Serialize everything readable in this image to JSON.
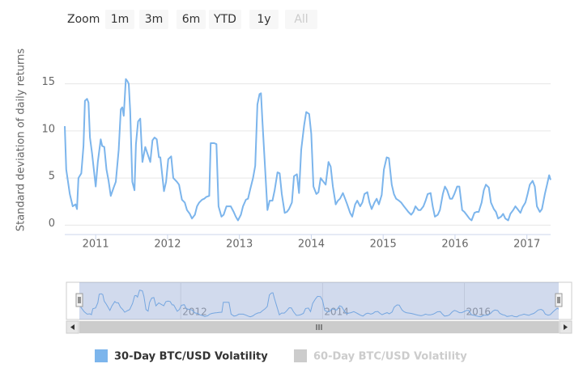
{
  "chart_data": {
    "type": "line",
    "range_selector": {
      "label": "Zoom",
      "buttons": [
        "1m",
        "3m",
        "6m",
        "YTD",
        "1y",
        "All"
      ],
      "disabled": [
        "All"
      ]
    },
    "y_label": "Standard deviation of daily returns",
    "xlim": [
      2010.57,
      2017.33
    ],
    "xticks": [
      2011,
      2012,
      2013,
      2014,
      2015,
      2016,
      2017
    ],
    "ylim": [
      -1,
      19
    ],
    "yticks": [
      0,
      5,
      10,
      15
    ],
    "grid": true,
    "navigator_xticks": [
      2012,
      2014,
      2016
    ],
    "x": [
      2010.57,
      2010.59,
      2010.64,
      2010.68,
      2010.72,
      2010.74,
      2010.76,
      2010.8,
      2010.83,
      2010.85,
      2010.88,
      2010.9,
      2010.92,
      2010.95,
      2011.0,
      2011.03,
      2011.07,
      2011.09,
      2011.12,
      2011.15,
      2011.18,
      2011.21,
      2011.25,
      2011.28,
      2011.32,
      2011.35,
      2011.37,
      2011.39,
      2011.42,
      2011.44,
      2011.46,
      2011.48,
      2011.51,
      2011.54,
      2011.56,
      2011.59,
      2011.62,
      2011.65,
      2011.69,
      2011.72,
      2011.76,
      2011.79,
      2011.82,
      2011.85,
      2011.88,
      2011.9,
      2011.95,
      2011.98,
      2012.01,
      2012.05,
      2012.08,
      2012.13,
      2012.16,
      2012.2,
      2012.24,
      2012.27,
      2012.31,
      2012.34,
      2012.38,
      2012.41,
      2012.44,
      2012.48,
      2012.51,
      2012.54,
      2012.58,
      2012.6,
      2012.65,
      2012.68,
      2012.71,
      2012.75,
      2012.78,
      2012.82,
      2012.88,
      2012.92,
      2012.95,
      2012.98,
      2013.02,
      2013.05,
      2013.09,
      2013.12,
      2013.15,
      2013.19,
      2013.22,
      2013.25,
      2013.28,
      2013.3,
      2013.32,
      2013.36,
      2013.39,
      2013.42,
      2013.46,
      2013.49,
      2013.53,
      2013.56,
      2013.59,
      2013.63,
      2013.66,
      2013.69,
      2013.73,
      2013.76,
      2013.8,
      2013.83,
      2013.86,
      2013.9,
      2013.93,
      2013.97,
      2014.0,
      2014.03,
      2014.07,
      2014.1,
      2014.13,
      2014.17,
      2014.2,
      2014.24,
      2014.27,
      2014.3,
      2014.34,
      2014.37,
      2014.4,
      2014.44,
      2014.47,
      2014.5,
      2014.54,
      2014.57,
      2014.61,
      2014.64,
      2014.68,
      2014.71,
      2014.74,
      2014.78,
      2014.81,
      2014.84,
      2014.88,
      2014.91,
      2014.94,
      2014.98,
      2015.01,
      2015.05,
      2015.08,
      2015.12,
      2015.15,
      2015.18,
      2015.22,
      2015.25,
      2015.29,
      2015.32,
      2015.35,
      2015.39,
      2015.42,
      2015.45,
      2015.49,
      2015.52,
      2015.56,
      2015.59,
      2015.62,
      2015.66,
      2015.69,
      2015.72,
      2015.76,
      2015.79,
      2015.83,
      2015.86,
      2015.89,
      2015.93,
      2015.96,
      2015.99,
      2016.03,
      2016.06,
      2016.1,
      2016.13,
      2016.16,
      2016.2,
      2016.23,
      2016.27,
      2016.3,
      2016.33,
      2016.37,
      2016.4,
      2016.43,
      2016.47,
      2016.5,
      2016.54,
      2016.57,
      2016.6,
      2016.64,
      2016.67,
      2016.7,
      2016.74,
      2016.77,
      2016.81,
      2016.84,
      2016.87,
      2016.91,
      2016.94,
      2016.98,
      2017.01,
      2017.04,
      2017.08,
      2017.11,
      2017.14,
      2017.18,
      2017.21,
      2017.25,
      2017.28,
      2017.31,
      2017.33
    ],
    "series": [
      {
        "name": "30-Day BTC/USD Volatility",
        "color": "#7cb5ec",
        "visible": true,
        "values": [
          10.5,
          5.9,
          3.3,
          2.0,
          2.2,
          1.7,
          5.0,
          5.5,
          8.4,
          13.2,
          13.4,
          13.0,
          9.3,
          7.6,
          4.1,
          6.7,
          9.1,
          8.4,
          8.3,
          5.9,
          4.7,
          3.1,
          4.0,
          4.6,
          8.0,
          12.3,
          12.5,
          11.6,
          15.5,
          15.3,
          15.0,
          12.1,
          4.6,
          3.7,
          8.6,
          11.0,
          11.3,
          6.7,
          8.3,
          7.6,
          6.7,
          9.0,
          9.3,
          9.1,
          7.2,
          7.2,
          3.6,
          4.6,
          7.0,
          7.3,
          5.0,
          4.6,
          4.3,
          2.7,
          2.4,
          1.6,
          1.2,
          0.7,
          1.1,
          2.0,
          2.4,
          2.7,
          2.8,
          3.0,
          3.1,
          8.7,
          8.7,
          8.6,
          2.0,
          0.9,
          1.1,
          2.0,
          2.0,
          1.4,
          0.9,
          0.5,
          1.1,
          2.0,
          2.7,
          2.8,
          3.8,
          5.0,
          6.3,
          12.8,
          13.9,
          14.0,
          11.0,
          5.7,
          1.6,
          2.6,
          2.6,
          3.7,
          5.6,
          5.5,
          3.3,
          1.3,
          1.4,
          1.7,
          2.4,
          5.2,
          5.4,
          3.4,
          8.0,
          10.6,
          12.0,
          11.8,
          9.7,
          4.1,
          3.3,
          3.5,
          5.0,
          4.6,
          4.3,
          6.7,
          6.2,
          4.1,
          2.2,
          2.6,
          2.8,
          3.4,
          2.8,
          2.2,
          1.3,
          0.9,
          2.2,
          2.6,
          2.0,
          2.4,
          3.3,
          3.5,
          2.4,
          1.7,
          2.4,
          2.8,
          2.2,
          3.2,
          5.9,
          7.2,
          7.1,
          4.3,
          3.3,
          2.8,
          2.6,
          2.4,
          2.0,
          1.7,
          1.4,
          1.1,
          1.4,
          2.0,
          1.6,
          1.6,
          2.0,
          2.6,
          3.3,
          3.4,
          2.0,
          0.9,
          1.1,
          1.6,
          3.3,
          4.1,
          3.7,
          2.8,
          2.8,
          3.3,
          4.1,
          4.1,
          1.6,
          1.4,
          1.1,
          0.7,
          0.5,
          1.3,
          1.4,
          1.4,
          2.4,
          3.7,
          4.3,
          4.0,
          2.4,
          1.7,
          1.4,
          0.7,
          0.9,
          1.2,
          0.7,
          0.5,
          1.2,
          1.6,
          2.0,
          1.7,
          1.3,
          1.9,
          2.4,
          3.3,
          4.3,
          4.7,
          4.1,
          2.0,
          1.4,
          1.7,
          3.3,
          4.3,
          5.3,
          4.8
        ]
      },
      {
        "name": "60-Day BTC/USD Volatility",
        "color": "#cccccc",
        "visible": false
      }
    ]
  }
}
